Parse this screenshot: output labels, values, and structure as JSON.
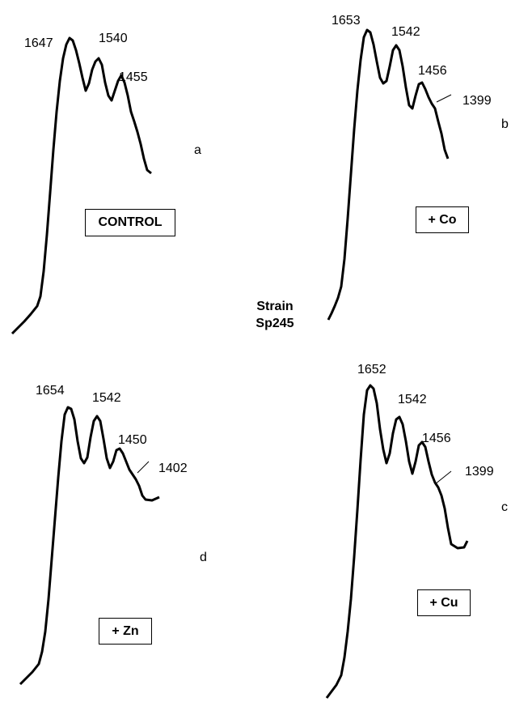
{
  "center_label": {
    "line1": "Strain",
    "line2": "Sp245"
  },
  "chart_data": [
    {
      "type": "line",
      "panel": "a",
      "condition": "CONTROL",
      "peaks": [
        "1647",
        "1540",
        "1455"
      ],
      "series_color": "#000000"
    },
    {
      "type": "line",
      "panel": "b",
      "condition": "+ Co",
      "peaks": [
        "1653",
        "1542",
        "1456",
        "1399"
      ],
      "series_color": "#000000"
    },
    {
      "type": "line",
      "panel": "d",
      "condition": "+ Zn",
      "peaks": [
        "1654",
        "1542",
        "1450",
        "1402"
      ],
      "series_color": "#000000"
    },
    {
      "type": "line",
      "panel": "c",
      "condition": "+ Cu",
      "peaks": [
        "1652",
        "1542",
        "1456",
        "1399"
      ],
      "series_color": "#000000"
    }
  ]
}
